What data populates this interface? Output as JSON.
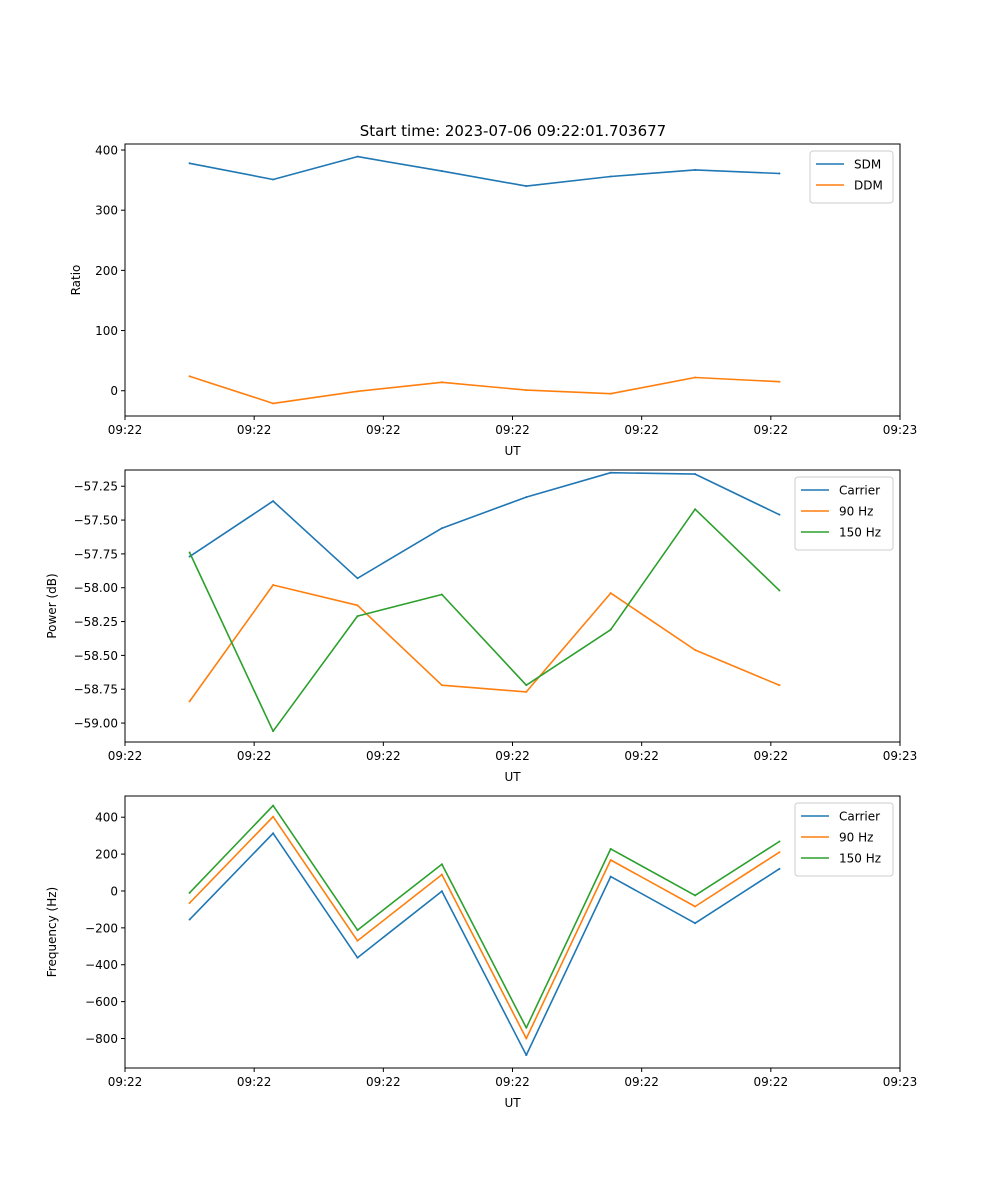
{
  "title": "Start time: 2023-07-06 09:22:01.703677",
  "colors": {
    "blue": "#1f77b4",
    "orange": "#ff7f0e",
    "green": "#2ca02c"
  },
  "chart_data": [
    {
      "type": "line",
      "xlabel": "UT",
      "ylabel": "Ratio",
      "xlim": [
        0,
        9
      ],
      "ylim": [
        -42,
        410
      ],
      "xticks": [
        0,
        1.5,
        3,
        4.5,
        6,
        7.5,
        9
      ],
      "xtick_labels": [
        "09:22",
        "09:22",
        "09:22",
        "09:22",
        "09:22",
        "09:22",
        "09:23"
      ],
      "yticks": [
        0,
        100,
        200,
        300,
        400
      ],
      "ytick_labels": [
        "0",
        "100",
        "200",
        "300",
        "400"
      ],
      "legend_position": "top-right",
      "x": [
        0.75,
        1.72,
        2.7,
        3.68,
        4.66,
        5.64,
        6.62,
        7.6
      ],
      "series": [
        {
          "name": "SDM",
          "color": "blue",
          "values": [
            378,
            351,
            389,
            365,
            340,
            356,
            367,
            361
          ]
        },
        {
          "name": "DDM",
          "color": "orange",
          "values": [
            24,
            -21,
            -1,
            14,
            1,
            -5,
            22,
            15
          ]
        }
      ]
    },
    {
      "type": "line",
      "xlabel": "UT",
      "ylabel": "Power (dB)",
      "xlim": [
        0,
        9
      ],
      "ylim": [
        -59.14,
        -57.13
      ],
      "xticks": [
        0,
        1.5,
        3,
        4.5,
        6,
        7.5,
        9
      ],
      "xtick_labels": [
        "09:22",
        "09:22",
        "09:22",
        "09:22",
        "09:22",
        "09:22",
        "09:23"
      ],
      "yticks": [
        -59.0,
        -58.75,
        -58.5,
        -58.25,
        -58.0,
        -57.75,
        -57.5,
        -57.25
      ],
      "ytick_labels": [
        "−59.00",
        "−58.75",
        "−58.50",
        "−58.25",
        "−58.00",
        "−57.75",
        "−57.50",
        "−57.25"
      ],
      "legend_position": "top-right",
      "x": [
        0.75,
        1.72,
        2.7,
        3.68,
        4.66,
        5.64,
        6.62,
        7.6
      ],
      "series": [
        {
          "name": "Carrier",
          "color": "blue",
          "values": [
            -57.77,
            -57.36,
            -57.93,
            -57.56,
            -57.33,
            -57.15,
            -57.16,
            -57.46
          ]
        },
        {
          "name": "90 Hz",
          "color": "orange",
          "values": [
            -58.84,
            -57.98,
            -58.13,
            -58.72,
            -58.77,
            -58.04,
            -58.46,
            -58.72
          ]
        },
        {
          "name": "150 Hz",
          "color": "green",
          "values": [
            -57.74,
            -59.06,
            -58.21,
            -58.05,
            -58.72,
            -58.31,
            -57.42,
            -58.02
          ]
        }
      ]
    },
    {
      "type": "line",
      "xlabel": "UT",
      "ylabel": "Frequency (Hz)",
      "xlim": [
        0,
        9
      ],
      "ylim": [
        -960,
        515
      ],
      "xticks": [
        0,
        1.5,
        3,
        4.5,
        6,
        7.5,
        9
      ],
      "xtick_labels": [
        "09:22",
        "09:22",
        "09:22",
        "09:22",
        "09:22",
        "09:22",
        "09:23"
      ],
      "yticks": [
        -800,
        -600,
        -400,
        -200,
        0,
        200,
        400
      ],
      "ytick_labels": [
        "−800",
        "−600",
        "−400",
        "−200",
        "0",
        "200",
        "400"
      ],
      "legend_position": "top-right",
      "x": [
        0.75,
        1.72,
        2.7,
        3.68,
        4.66,
        5.64,
        6.62,
        7.6
      ],
      "series": [
        {
          "name": "Carrier",
          "color": "blue",
          "values": [
            -155,
            313,
            -362,
            -1,
            -890,
            78,
            -175,
            120
          ]
        },
        {
          "name": "90 Hz",
          "color": "orange",
          "values": [
            -65,
            403,
            -270,
            89,
            -800,
            168,
            -84,
            210
          ]
        },
        {
          "name": "150 Hz",
          "color": "green",
          "values": [
            -10,
            463,
            -212,
            145,
            -742,
            228,
            -24,
            268
          ]
        }
      ]
    }
  ]
}
